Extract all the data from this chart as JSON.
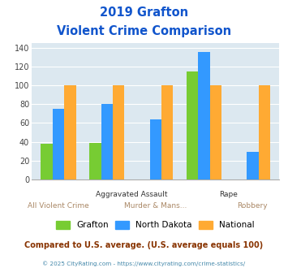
{
  "title_line1": "2019 Grafton",
  "title_line2": "Violent Crime Comparison",
  "categories": [
    "All Violent Crime",
    "Aggravated Assault",
    "Murder & Mans...",
    "Rape",
    "Robbery"
  ],
  "series": {
    "Grafton": [
      38,
      39,
      null,
      115,
      null
    ],
    "North Dakota": [
      75,
      80,
      64,
      135,
      29
    ],
    "National": [
      100,
      100,
      100,
      100,
      100
    ]
  },
  "colors": {
    "Grafton": "#77cc33",
    "North Dakota": "#3399ff",
    "National": "#ffaa33"
  },
  "ylim": [
    0,
    145
  ],
  "yticks": [
    0,
    20,
    40,
    60,
    80,
    100,
    120,
    140
  ],
  "background_color": "#dce8f0",
  "title_color": "#1155cc",
  "footer_text": "Compared to U.S. average. (U.S. average equals 100)",
  "footer_color": "#883300",
  "copyright_text": "© 2025 CityRating.com - https://www.cityrating.com/crime-statistics/",
  "copyright_color": "#4488aa",
  "x_top_labels": [
    {
      "text": "Aggravated Assault",
      "x": 1.5,
      "color": "#333333"
    },
    {
      "text": "Rape",
      "x": 3.5,
      "color": "#333333"
    }
  ],
  "x_bottom_labels": [
    {
      "text": "All Violent Crime",
      "x": 0,
      "color": "#aa8866"
    },
    {
      "text": "Murder & Mans...",
      "x": 2,
      "color": "#aa8866"
    },
    {
      "text": "Robbery",
      "x": 4,
      "color": "#aa8866"
    }
  ]
}
